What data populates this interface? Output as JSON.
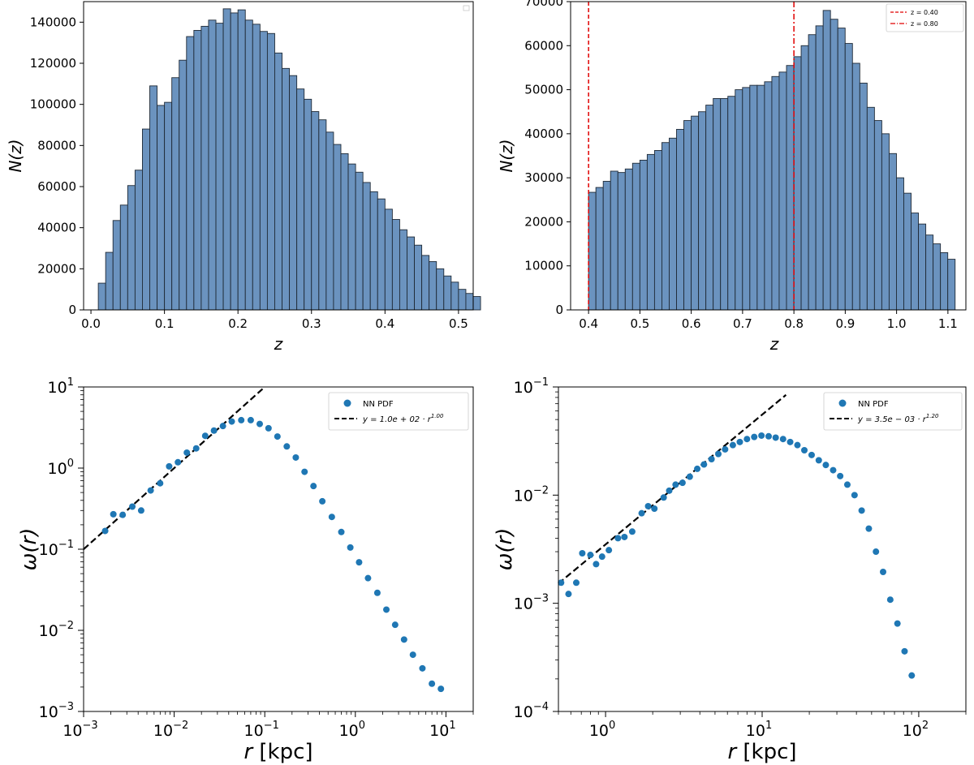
{
  "chart_data": [
    {
      "type": "bar",
      "title": "",
      "xlabel": "z",
      "ylabel": "N(z)",
      "xlim": [
        -0.01,
        0.52
      ],
      "ylim": [
        0,
        150000
      ],
      "bin_start": 0.01,
      "bin_width": 0.01,
      "values": [
        13000,
        28000,
        43500,
        51000,
        60500,
        68000,
        88000,
        109000,
        99500,
        101000,
        113000,
        121500,
        133000,
        136000,
        138000,
        141000,
        139500,
        146500,
        144500,
        146000,
        141000,
        139000,
        135500,
        134500,
        125000,
        117500,
        114000,
        107500,
        102500,
        96500,
        92500,
        86500,
        80500,
        76000,
        71000,
        67000,
        62000,
        57500,
        54000,
        49000,
        44000,
        39000,
        35500,
        31500,
        26500,
        23500,
        20000,
        16500,
        13500,
        10000,
        8000,
        6500
      ],
      "xticks": [
        0.0,
        0.1,
        0.2,
        0.3,
        0.4,
        0.5
      ],
      "xtick_labels": [
        "0.0",
        "0.1",
        "0.2",
        "0.3",
        "0.4",
        "0.5"
      ],
      "yticks": [
        0,
        20000,
        40000,
        60000,
        80000,
        100000,
        120000,
        140000
      ],
      "ytick_labels": [
        "0",
        "20000",
        "40000",
        "60000",
        "80000",
        "100000",
        "120000",
        "140000"
      ],
      "legend": []
    },
    {
      "type": "bar",
      "title": "",
      "xlabel": "z",
      "ylabel": "N(z)",
      "xlim": [
        0.365,
        1.135
      ],
      "ylim": [
        0,
        70000
      ],
      "bin_start": 0.4,
      "bin_width": 0.01428,
      "values": [
        26700,
        27800,
        29200,
        31500,
        31200,
        32000,
        33300,
        34000,
        35300,
        36200,
        38000,
        39000,
        41000,
        43000,
        44000,
        45000,
        46500,
        48000,
        48000,
        48500,
        50000,
        50500,
        51000,
        51000,
        51800,
        53000,
        54000,
        55500,
        57500,
        60000,
        62500,
        64500,
        68000,
        66000,
        64000,
        60500,
        56000,
        51500,
        46000,
        43000,
        40000,
        35500,
        30000,
        26500,
        22000,
        19500,
        17000,
        15000,
        13000,
        11500
      ],
      "xticks": [
        0.4,
        0.5,
        0.6,
        0.7,
        0.8,
        0.9,
        1.0,
        1.1
      ],
      "xtick_labels": [
        "0.4",
        "0.5",
        "0.6",
        "0.7",
        "0.8",
        "0.9",
        "1.0",
        "1.1"
      ],
      "yticks": [
        0,
        10000,
        20000,
        30000,
        40000,
        50000,
        60000,
        70000
      ],
      "ytick_labels": [
        "0",
        "10000",
        "20000",
        "30000",
        "40000",
        "50000",
        "60000",
        "70000"
      ],
      "vlines": [
        {
          "x": 0.4,
          "color": "#e00000",
          "label": "z = 0.40"
        },
        {
          "x": 0.8,
          "color": "#e00000",
          "label": "z = 0.80"
        }
      ],
      "legend": [
        "z = 0.40",
        "z = 0.80"
      ]
    },
    {
      "type": "scatter",
      "scale": "log-log",
      "xlabel": "r [kpc]",
      "ylabel": "ω(r)",
      "xlim": [
        0.001,
        20
      ],
      "ylim": [
        0.001,
        10
      ],
      "xticks": [
        0.001,
        0.01,
        0.1,
        1,
        10
      ],
      "xtick_exps": [
        "−3",
        "−2",
        "−1",
        "0",
        "1"
      ],
      "yticks": [
        0.001,
        0.01,
        0.1,
        1,
        10
      ],
      "ytick_exps": [
        "−3",
        "−2",
        "−1",
        "0",
        "1"
      ],
      "tick_base": "10",
      "points": [
        [
          0.00173,
          0.168
        ],
        [
          0.00213,
          0.27
        ],
        [
          0.0027,
          0.265
        ],
        [
          0.00345,
          0.335
        ],
        [
          0.00432,
          0.3
        ],
        [
          0.0055,
          0.53
        ],
        [
          0.007,
          0.65
        ],
        [
          0.0088,
          1.05
        ],
        [
          0.011,
          1.18
        ],
        [
          0.0138,
          1.55
        ],
        [
          0.0175,
          1.75
        ],
        [
          0.022,
          2.5
        ],
        [
          0.0275,
          2.9
        ],
        [
          0.0345,
          3.3
        ],
        [
          0.0432,
          3.75
        ],
        [
          0.055,
          3.9
        ],
        [
          0.07,
          3.9
        ],
        [
          0.088,
          3.5
        ],
        [
          0.11,
          3.1
        ],
        [
          0.138,
          2.45
        ],
        [
          0.175,
          1.85
        ],
        [
          0.22,
          1.35
        ],
        [
          0.275,
          0.9
        ],
        [
          0.345,
          0.6
        ],
        [
          0.432,
          0.39
        ],
        [
          0.55,
          0.25
        ],
        [
          0.7,
          0.163
        ],
        [
          0.88,
          0.105
        ],
        [
          1.1,
          0.069
        ],
        [
          1.38,
          0.044
        ],
        [
          1.75,
          0.029
        ],
        [
          2.2,
          0.018
        ],
        [
          2.75,
          0.0117
        ],
        [
          3.45,
          0.0077
        ],
        [
          4.32,
          0.005
        ],
        [
          5.5,
          0.0034
        ],
        [
          7.0,
          0.0022
        ],
        [
          8.8,
          0.0019
        ]
      ],
      "fit": {
        "a": 100,
        "b": 1.0,
        "x_range": [
          0.001,
          0.095
        ]
      },
      "legend": [
        "NN PDF",
        "y = 1.0e + 02 · r",
        "1.00"
      ]
    },
    {
      "type": "scatter",
      "scale": "log-log",
      "xlabel": "r [kpc]",
      "ylabel": "ω(r)",
      "xlim": [
        0.5,
        200
      ],
      "ylim": [
        0.0001,
        0.1
      ],
      "xticks": [
        1,
        10,
        100
      ],
      "xtick_exps": [
        "0",
        "1",
        "2"
      ],
      "yticks": [
        0.0001,
        0.001,
        0.01,
        0.1
      ],
      "ytick_exps": [
        "−4",
        "−3",
        "−2",
        "−1"
      ],
      "tick_base": "10",
      "points": [
        [
          0.52,
          0.00155
        ],
        [
          0.58,
          0.00122
        ],
        [
          0.65,
          0.00155
        ],
        [
          0.71,
          0.0029
        ],
        [
          0.8,
          0.0028
        ],
        [
          0.87,
          0.0023
        ],
        [
          0.95,
          0.0027
        ],
        [
          1.05,
          0.0031
        ],
        [
          1.2,
          0.004
        ],
        [
          1.32,
          0.0041
        ],
        [
          1.48,
          0.0046
        ],
        [
          1.7,
          0.0068
        ],
        [
          1.87,
          0.0079
        ],
        [
          2.05,
          0.0075
        ],
        [
          2.35,
          0.0095
        ],
        [
          2.55,
          0.011
        ],
        [
          2.8,
          0.0125
        ],
        [
          3.1,
          0.013
        ],
        [
          3.45,
          0.0148
        ],
        [
          3.85,
          0.0175
        ],
        [
          4.25,
          0.0192
        ],
        [
          4.75,
          0.0215
        ],
        [
          5.25,
          0.024
        ],
        [
          5.8,
          0.0265
        ],
        [
          6.5,
          0.029
        ],
        [
          7.2,
          0.031
        ],
        [
          8.0,
          0.033
        ],
        [
          8.9,
          0.0345
        ],
        [
          9.9,
          0.0355
        ],
        [
          11.0,
          0.035
        ],
        [
          12.2,
          0.034
        ],
        [
          13.6,
          0.033
        ],
        [
          15.1,
          0.031
        ],
        [
          16.8,
          0.029
        ],
        [
          18.6,
          0.026
        ],
        [
          20.7,
          0.0235
        ],
        [
          23.0,
          0.021
        ],
        [
          25.5,
          0.019
        ],
        [
          28.4,
          0.017
        ],
        [
          31.5,
          0.015
        ],
        [
          35.0,
          0.0125
        ],
        [
          38.9,
          0.01
        ],
        [
          43.2,
          0.0072
        ],
        [
          48.0,
          0.0049
        ],
        [
          53.3,
          0.003
        ],
        [
          59.2,
          0.00195
        ],
        [
          65.8,
          0.00108
        ],
        [
          73.1,
          0.00065
        ],
        [
          81.2,
          0.00036
        ],
        [
          90.2,
          0.000215
        ]
      ],
      "fit": {
        "a": 0.0035,
        "b": 1.2,
        "x_range": [
          0.5,
          14.2
        ]
      },
      "legend": [
        "NN PDF",
        "y = 3.5e − 03 · r",
        "1.20"
      ]
    }
  ],
  "colors": {
    "bar_fill": "#6b93bf",
    "bar_edge": "#1f2a36",
    "vline": "#e00000",
    "marker": "#1f77b4",
    "fit": "#000000"
  }
}
